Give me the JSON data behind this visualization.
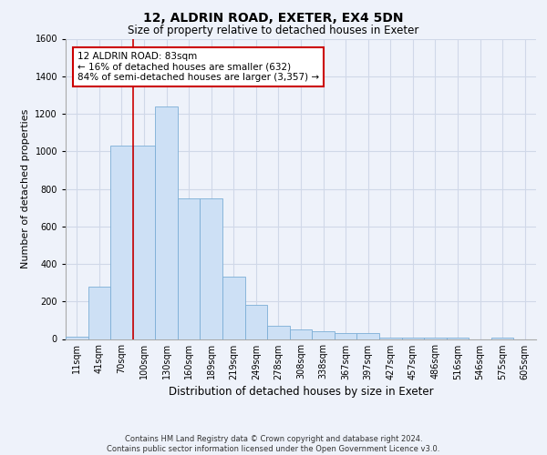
{
  "title_line1": "12, ALDRIN ROAD, EXETER, EX4 5DN",
  "title_line2": "Size of property relative to detached houses in Exeter",
  "xlabel": "Distribution of detached houses by size in Exeter",
  "ylabel": "Number of detached properties",
  "categories": [
    "11sqm",
    "41sqm",
    "70sqm",
    "100sqm",
    "130sqm",
    "160sqm",
    "189sqm",
    "219sqm",
    "249sqm",
    "278sqm",
    "308sqm",
    "338sqm",
    "367sqm",
    "397sqm",
    "427sqm",
    "457sqm",
    "486sqm",
    "516sqm",
    "546sqm",
    "575sqm",
    "605sqm"
  ],
  "values": [
    10,
    280,
    1030,
    1030,
    1240,
    750,
    750,
    330,
    180,
    70,
    50,
    40,
    30,
    30,
    5,
    5,
    5,
    5,
    0,
    5,
    0
  ],
  "bar_color": "#cde0f5",
  "bar_edge_color": "#7baed6",
  "ylim": [
    0,
    1600
  ],
  "yticks": [
    0,
    200,
    400,
    600,
    800,
    1000,
    1200,
    1400,
    1600
  ],
  "annotation_text": "12 ALDRIN ROAD: 83sqm\n← 16% of detached houses are smaller (632)\n84% of semi-detached houses are larger (3,357) →",
  "vline_x": 2.5,
  "vline_color": "#cc0000",
  "box_color": "#cc0000",
  "footer": "Contains HM Land Registry data © Crown copyright and database right 2024.\nContains public sector information licensed under the Open Government Licence v3.0.",
  "background_color": "#eef2fa",
  "plot_bg_color": "#eef2fa",
  "grid_color": "#d0d8e8",
  "title1_fontsize": 10,
  "title2_fontsize": 8.5,
  "ylabel_fontsize": 8,
  "xlabel_fontsize": 8.5,
  "tick_fontsize": 7,
  "annot_fontsize": 7.5,
  "footer_fontsize": 6
}
